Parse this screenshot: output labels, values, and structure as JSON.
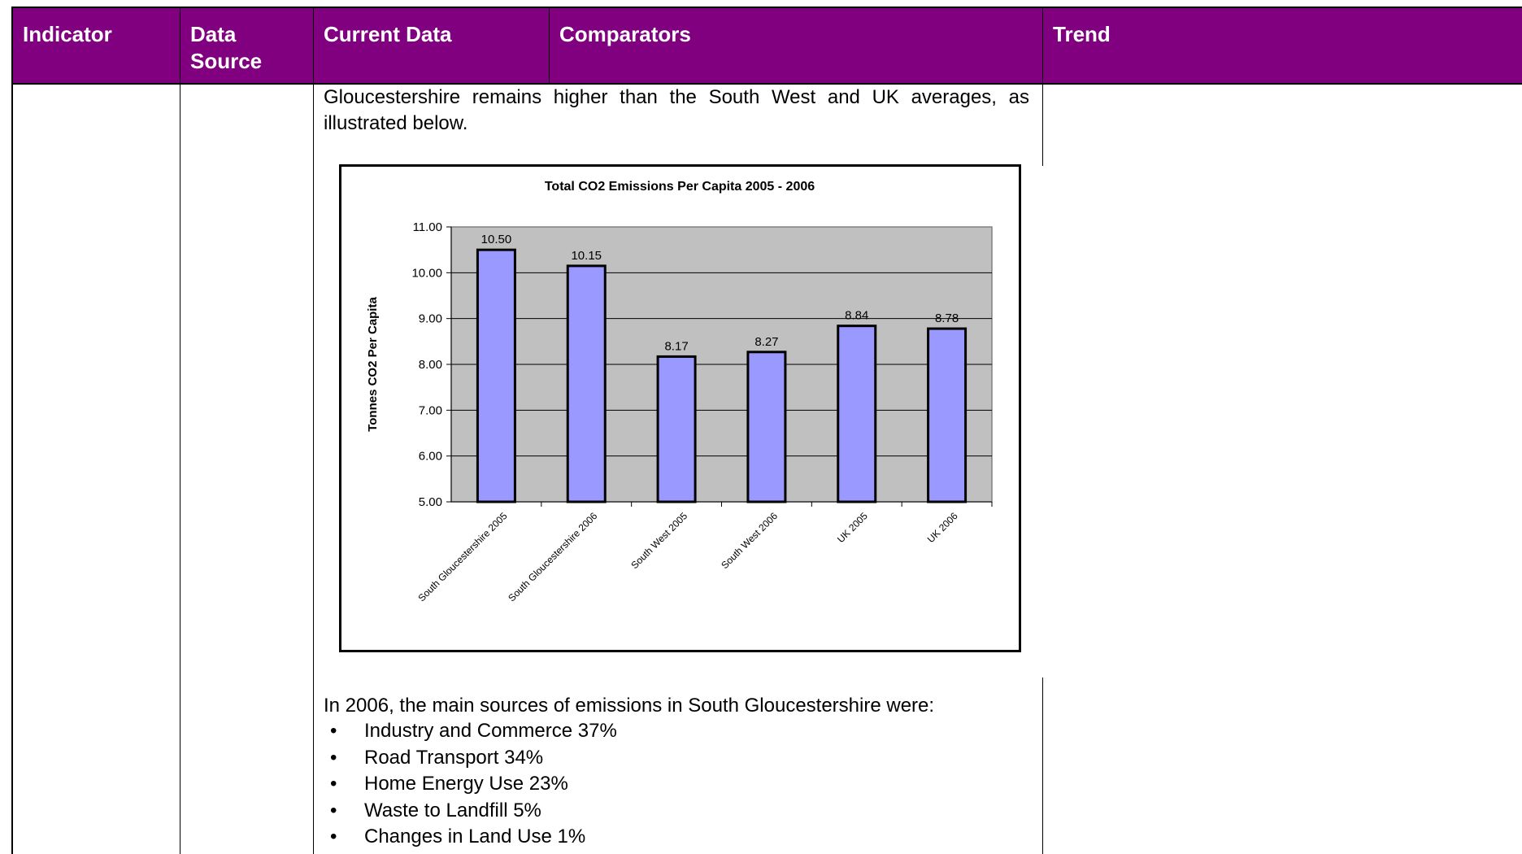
{
  "table": {
    "headers": [
      "Indicator",
      "Data Source",
      "Current Data",
      "Comparators",
      "Trend"
    ]
  },
  "body": {
    "intro_text": "Gloucestershire remains higher than the South West and UK averages, as illustrated below.",
    "sources_intro": "In 2006, the main sources of emissions in South Gloucestershire were:",
    "bullets": [
      "Industry and Commerce 37%",
      "Road Transport 34%",
      "Home Energy Use 23%",
      "Waste to Landfill 5%",
      "Changes in Land Use 1%"
    ]
  },
  "colors": {
    "header_bg": "#800080",
    "header_text": "#ffffff",
    "plot_bg": "#c0c0c0",
    "bar_fill": "#9999ff"
  },
  "chart_data": {
    "type": "bar",
    "title": "Total CO2 Emissions Per Capita 2005 - 2006",
    "xlabel": "",
    "ylabel": "Tonnes CO2 Per Capita",
    "ylim": [
      5.0,
      11.0
    ],
    "yticks": [
      "5.00",
      "6.00",
      "7.00",
      "8.00",
      "9.00",
      "10.00",
      "11.00"
    ],
    "categories": [
      "South Gloucestershire 2005",
      "South Gloucestershire 2006",
      "South West 2005",
      "South West 2006",
      "UK 2005",
      "UK 2006"
    ],
    "values": [
      10.5,
      10.15,
      8.17,
      8.27,
      8.84,
      8.78
    ],
    "data_labels": [
      "10.50",
      "10.15",
      "8.17",
      "8.27",
      "8.84",
      "8.78"
    ],
    "grid": true,
    "legend": false
  }
}
